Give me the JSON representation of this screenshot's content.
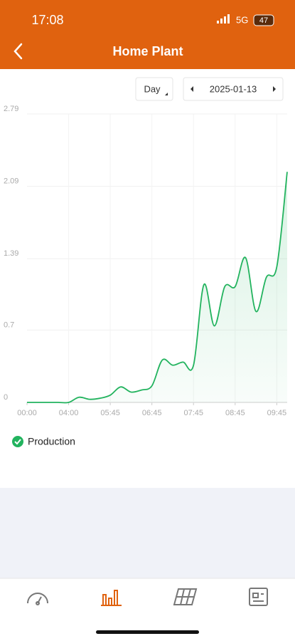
{
  "status_bar": {
    "time": "17:08",
    "network": "5G",
    "battery": "47"
  },
  "header": {
    "title": "Home Plant"
  },
  "controls": {
    "period": "Day",
    "date": "2025-01-13"
  },
  "chart_data": {
    "type": "line",
    "categories": [
      "00:00",
      null,
      null,
      null,
      "04:00",
      null,
      null,
      null,
      "05:45",
      null,
      null,
      null,
      "06:45",
      null,
      null,
      null,
      "07:45",
      null,
      null,
      null,
      "08:45",
      null,
      null,
      null,
      "09:45",
      null
    ],
    "series": [
      {
        "name": "Production",
        "color": "#22b35e",
        "values": [
          0,
          0,
          0,
          0,
          0,
          0.05,
          0.03,
          0.04,
          0.07,
          0.15,
          0.1,
          0.12,
          0.16,
          0.41,
          0.36,
          0.39,
          0.36,
          1.14,
          0.74,
          1.12,
          1.12,
          1.4,
          0.88,
          1.21,
          1.31,
          2.23
        ]
      }
    ],
    "ylim": [
      0,
      2.79
    ],
    "yticks": [
      0,
      0.7,
      1.39,
      2.09,
      2.79
    ],
    "grid": true
  }
}
